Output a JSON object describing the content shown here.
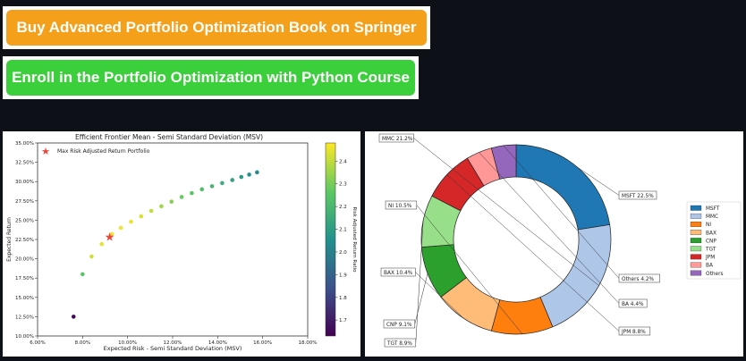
{
  "buttons": {
    "springer_label": "Buy Advanced Portfolio Optimization Book on Springer",
    "course_label": "Enroll in the Portfolio Optimization with Python Course",
    "springer_color": "#f5a01a",
    "course_color": "#3ccf3c"
  },
  "chart_data": [
    {
      "type": "scatter",
      "title": "Efficient Frontier Mean - Semi Standard Deviation (MSV)",
      "xlabel": "Expected Risk - Semi Standard Deviation (MSV)",
      "ylabel": "Expected Return",
      "colorbar_label": "Risk Adjusted Return Ratio",
      "xlim": [
        6,
        18
      ],
      "ylim": [
        10,
        35
      ],
      "x_ticks": [
        "6.00%",
        "8.00%",
        "10.00%",
        "12.00%",
        "14.00%",
        "16.00%",
        "18.00%"
      ],
      "y_ticks": [
        "10.00%",
        "12.50%",
        "15.00%",
        "17.50%",
        "20.00%",
        "22.50%",
        "25.00%",
        "27.50%",
        "30.00%",
        "32.50%",
        "35.00%"
      ],
      "colorbar_range": [
        1.63,
        2.48
      ],
      "colorbar_ticks": [
        "1.7",
        "1.8",
        "1.9",
        "2.0",
        "2.1",
        "2.2",
        "2.3",
        "2.4"
      ],
      "colormap": "viridis",
      "legend_label": "Max Risk Adjusted Return Portfolio",
      "legend_position": "upper-left",
      "grid": false,
      "points": [
        {
          "x": 7.6,
          "y": 12.5,
          "ratio": 1.65
        },
        {
          "x": 8.0,
          "y": 18.0,
          "ratio": 2.25
        },
        {
          "x": 8.4,
          "y": 20.3,
          "ratio": 2.42
        },
        {
          "x": 8.85,
          "y": 21.9,
          "ratio": 2.45
        },
        {
          "x": 9.3,
          "y": 23.2,
          "ratio": 2.46
        },
        {
          "x": 9.7,
          "y": 24.0,
          "ratio": 2.46
        },
        {
          "x": 10.15,
          "y": 24.8,
          "ratio": 2.45
        },
        {
          "x": 10.6,
          "y": 25.5,
          "ratio": 2.43
        },
        {
          "x": 11.05,
          "y": 26.2,
          "ratio": 2.4
        },
        {
          "x": 11.5,
          "y": 26.8,
          "ratio": 2.36
        },
        {
          "x": 11.95,
          "y": 27.4,
          "ratio": 2.32
        },
        {
          "x": 12.4,
          "y": 28.0,
          "ratio": 2.28
        },
        {
          "x": 12.85,
          "y": 28.5,
          "ratio": 2.25
        },
        {
          "x": 13.3,
          "y": 29.0,
          "ratio": 2.22
        },
        {
          "x": 13.75,
          "y": 29.4,
          "ratio": 2.19
        },
        {
          "x": 14.2,
          "y": 29.8,
          "ratio": 2.15
        },
        {
          "x": 14.65,
          "y": 30.2,
          "ratio": 2.12
        },
        {
          "x": 15.05,
          "y": 30.6,
          "ratio": 2.09
        },
        {
          "x": 15.4,
          "y": 30.9,
          "ratio": 2.05
        },
        {
          "x": 15.75,
          "y": 31.2,
          "ratio": 2.03
        }
      ],
      "highlight": {
        "x": 9.2,
        "y": 22.8,
        "color": "#e8463a"
      }
    },
    {
      "type": "pie",
      "donut": true,
      "slices": [
        {
          "name": "MSFT",
          "label": "MSFT 22.5%",
          "value": 22.5,
          "color": "#1f77b4"
        },
        {
          "name": "MMC",
          "label": "MMC 21.2%",
          "value": 21.2,
          "color": "#aec7e8"
        },
        {
          "name": "NI",
          "label": "NI 10.5%",
          "value": 10.5,
          "color": "#ff7f0e"
        },
        {
          "name": "BAX",
          "label": "BAX 10.4%",
          "value": 10.4,
          "color": "#ffbb78"
        },
        {
          "name": "CNP",
          "label": "CNP 9.1%",
          "value": 9.1,
          "color": "#2ca02c"
        },
        {
          "name": "TGT",
          "label": "TGT 8.9%",
          "value": 8.9,
          "color": "#98df8a"
        },
        {
          "name": "JPM",
          "label": "JPM 8.8%",
          "value": 8.8,
          "color": "#d62728"
        },
        {
          "name": "BA",
          "label": "BA 4.4%",
          "value": 4.4,
          "color": "#ff9896"
        },
        {
          "name": "Others",
          "label": "Others 4.2%",
          "value": 4.2,
          "color": "#9467bd"
        }
      ],
      "legend_position": "right"
    }
  ]
}
